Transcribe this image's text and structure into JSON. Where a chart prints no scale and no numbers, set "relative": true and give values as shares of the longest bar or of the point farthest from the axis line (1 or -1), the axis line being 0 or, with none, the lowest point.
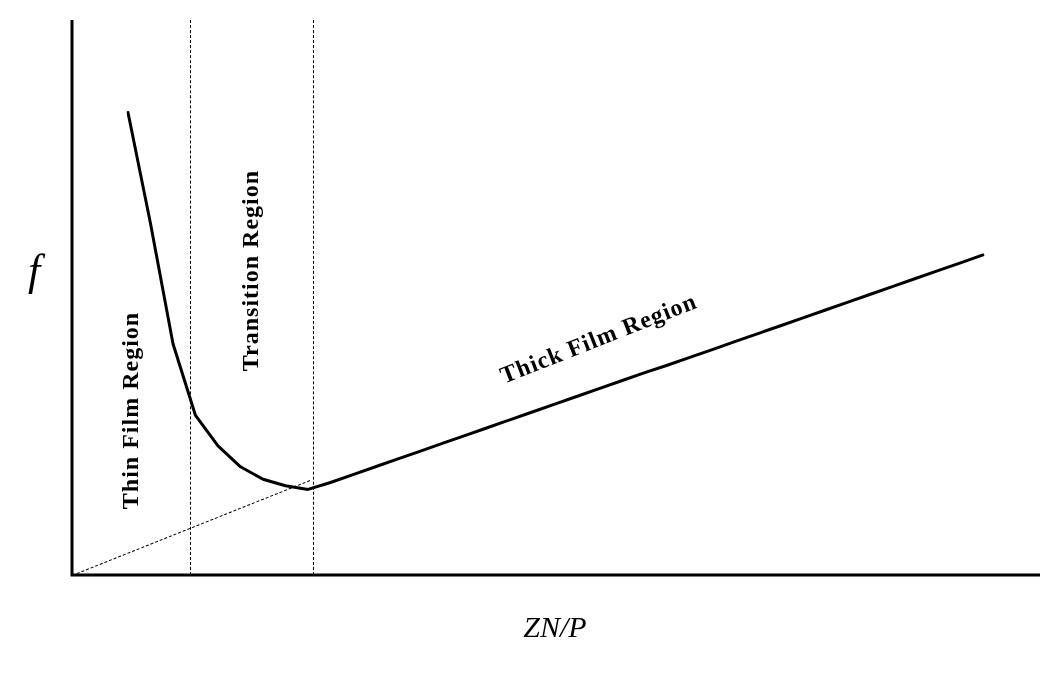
{
  "chart_data": {
    "type": "line",
    "relative": true,
    "xlabel": "ZN/P",
    "ylabel": "f",
    "marker": "none",
    "categories": [
      null,
      null,
      null,
      null,
      null,
      null,
      null,
      null,
      null,
      null,
      null,
      null,
      null,
      null,
      null,
      null,
      null,
      null,
      null,
      null,
      null,
      null,
      null,
      null,
      null,
      null,
      null,
      null,
      null,
      null,
      null,
      null,
      null,
      null,
      null,
      null,
      null,
      null,
      null
    ],
    "series": [
      {
        "color": "#000000",
        "line_style": "solid",
        "values": [
          1,
          0.76,
          0.5,
          0.345,
          0.279,
          0.234,
          0.207,
          0.193,
          0.185,
          0.2,
          0.217,
          0.234,
          0.251,
          0.268,
          0.285,
          0.302,
          0.319,
          0.336,
          0.353,
          0.37,
          0.387,
          0.404,
          0.421,
          0.438,
          0.454,
          0.471,
          0.488,
          0.505,
          0.522,
          0.539,
          0.556,
          0.573,
          0.59,
          0.607,
          0.624,
          0.641,
          0.658,
          0.675,
          0.692
        ]
      }
    ],
    "annotations": [
      "Thin Film Region",
      "Transition Region",
      "Thick Film Region"
    ]
  }
}
